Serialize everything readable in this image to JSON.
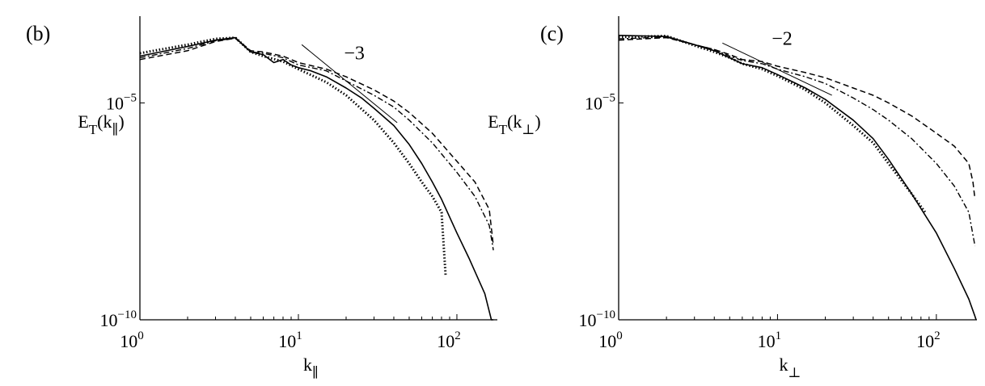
{
  "chart_data": [
    {
      "panel": "(b)",
      "type": "line",
      "ylabel": "E_T(k_∥)",
      "xlabel": "k_∥",
      "xscale": "log",
      "yscale": "log",
      "xlim": [
        1,
        180
      ],
      "ylim": [
        1e-10,
        0.001
      ],
      "xticks": [
        {
          "value": 1,
          "base": "10",
          "exp": "0"
        },
        {
          "value": 10,
          "base": "10",
          "exp": "1"
        },
        {
          "value": 100,
          "base": "10",
          "exp": "2"
        }
      ],
      "yticks": [
        {
          "value": 1e-05,
          "base": "10",
          "exp": "−5"
        },
        {
          "value": 1e-10,
          "base": "10",
          "exp": "−10"
        }
      ],
      "slope": {
        "label": "−3",
        "x": [
          10.5,
          42
        ],
        "y": [
          0.00022,
          3.5e-06
        ]
      },
      "series": [
        {
          "style": "solid",
          "x": [
            1,
            2,
            3,
            4,
            5,
            6,
            7,
            8,
            9,
            10,
            12,
            15,
            20,
            25,
            30,
            40,
            50,
            60,
            70,
            80,
            100,
            120,
            150,
            165,
            170
          ],
          "y": [
            0.00012,
            0.0002,
            0.00028,
            0.00032,
            0.00015,
            0.00013,
            8.5e-05,
            0.0001,
            7.5e-05,
            6.5e-05,
            5.5e-05,
            4e-05,
            2.2e-05,
            1.3e-05,
            7.5e-06,
            3e-06,
            1.1e-06,
            4e-07,
            1.5e-07,
            6e-08,
            1e-08,
            2.5e-09,
            4e-10,
            1e-10,
            8e-11
          ]
        },
        {
          "style": "dashed",
          "x": [
            1,
            2,
            3,
            4,
            5,
            6,
            8,
            10,
            15,
            20,
            30,
            40,
            50,
            70,
            100,
            130,
            160,
            170
          ],
          "y": [
            0.0001,
            0.00016,
            0.00026,
            0.00031,
            0.00016,
            0.00015,
            0.00012,
            8.5e-05,
            6e-05,
            4e-05,
            2e-05,
            1.1e-05,
            6e-06,
            2e-06,
            4.5e-07,
            1.5e-07,
            3.5e-08,
            5e-09
          ]
        },
        {
          "style": "dashdot",
          "x": [
            1,
            2,
            3,
            4,
            5,
            6,
            8,
            10,
            15,
            20,
            30,
            40,
            50,
            70,
            100,
            130,
            160,
            170
          ],
          "y": [
            0.00011,
            0.00018,
            0.00027,
            0.00031,
            0.00015,
            0.00014,
            0.00011,
            7.5e-05,
            5.5e-05,
            3.2e-05,
            1.5e-05,
            8e-06,
            4e-06,
            1.2e-06,
            2.5e-07,
            7e-08,
            1.5e-08,
            4e-09
          ]
        },
        {
          "style": "dotted",
          "x": [
            1,
            2,
            3,
            4,
            5,
            6,
            8,
            10,
            15,
            20,
            30,
            40,
            50,
            60,
            70,
            80,
            85
          ],
          "y": [
            0.00014,
            0.00022,
            0.0003,
            0.00032,
            0.00015,
            0.00012,
            9e-05,
            6e-05,
            3e-05,
            1.5e-05,
            4e-06,
            1.2e-06,
            4e-07,
            1.5e-07,
            7e-08,
            3e-08,
            1e-09
          ]
        }
      ]
    },
    {
      "panel": "(c)",
      "type": "line",
      "ylabel": "E_T(k_⊥)",
      "xlabel": "k_⊥",
      "xscale": "log",
      "yscale": "log",
      "xlim": [
        1,
        180
      ],
      "ylim": [
        1e-10,
        0.001
      ],
      "xticks": [
        {
          "value": 1,
          "base": "10",
          "exp": "0"
        },
        {
          "value": 10,
          "base": "10",
          "exp": "1"
        },
        {
          "value": 100,
          "base": "10",
          "exp": "2"
        }
      ],
      "yticks": [
        {
          "value": 1e-05,
          "base": "10",
          "exp": "−5"
        },
        {
          "value": 1e-10,
          "base": "10",
          "exp": "−10"
        }
      ],
      "slope": {
        "label": "−2",
        "x": [
          4.5,
          22
        ],
        "y": [
          0.00024,
          1.5e-05
        ]
      },
      "series": [
        {
          "style": "solid",
          "x": [
            1,
            2,
            3,
            4,
            5,
            6,
            8,
            10,
            15,
            20,
            30,
            40,
            50,
            70,
            100,
            130,
            160,
            175,
            178
          ],
          "y": [
            0.00036,
            0.00034,
            0.00022,
            0.00016,
            0.00011,
            8e-05,
            6.5e-05,
            4.5e-05,
            2.2e-05,
            1.2e-05,
            4e-06,
            1.5e-06,
            5e-07,
            8e-08,
            1e-08,
            1.5e-09,
            3e-10,
            1.2e-10,
            1e-10
          ]
        },
        {
          "style": "dashed",
          "x": [
            1,
            2,
            3,
            4,
            5,
            6,
            8,
            10,
            15,
            20,
            30,
            40,
            50,
            70,
            100,
            130,
            160,
            170,
            175
          ],
          "y": [
            0.00028,
            0.00032,
            0.00022,
            0.00017,
            0.00013,
            0.0001,
            9e-05,
            7e-05,
            5e-05,
            3.8e-05,
            2.2e-05,
            1.5e-05,
            1e-05,
            5e-06,
            2e-06,
            1e-06,
            4e-07,
            1.5e-07,
            6e-08
          ]
        },
        {
          "style": "dashdot",
          "x": [
            1,
            2,
            3,
            4,
            5,
            6,
            8,
            10,
            15,
            20,
            30,
            40,
            50,
            70,
            100,
            130,
            160,
            175
          ],
          "y": [
            0.0003,
            0.00033,
            0.00022,
            0.00017,
            0.00012,
            9.5e-05,
            8e-05,
            6e-05,
            4e-05,
            2.8e-05,
            1.3e-05,
            7e-06,
            4e-06,
            1.5e-06,
            4e-07,
            1.2e-07,
            3e-08,
            5e-09
          ]
        },
        {
          "style": "dotted",
          "x": [
            1,
            2,
            3,
            4,
            5,
            6,
            8,
            10,
            15,
            20,
            30,
            40,
            50,
            70,
            85
          ],
          "y": [
            0.00033,
            0.00035,
            0.00021,
            0.00015,
            0.00011,
            8e-05,
            6e-05,
            4.2e-05,
            2e-05,
            1e-05,
            3e-06,
            1.2e-06,
            4e-07,
            8e-08,
            3e-08
          ]
        }
      ]
    }
  ]
}
